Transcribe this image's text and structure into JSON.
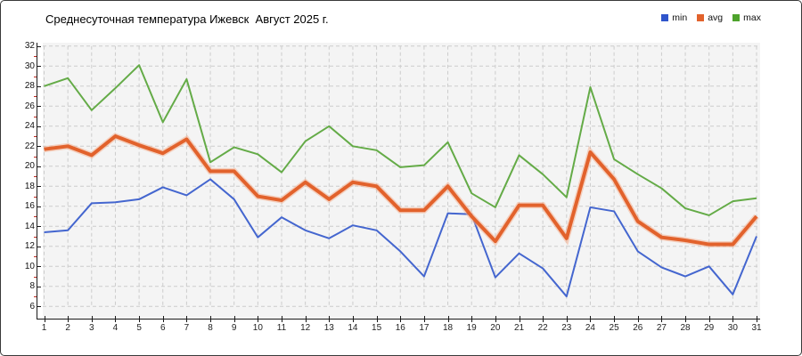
{
  "title": "Среднесуточная температура Ижевск  Август 2025 г.",
  "legend": [
    {
      "label": "min",
      "color": "#2f55cb"
    },
    {
      "label": "avg",
      "color": "#e2622c"
    },
    {
      "label": "max",
      "color": "#4ea32c"
    }
  ],
  "colors": {
    "plot_bg": "#f4f4f4",
    "grid": "#cccccc",
    "axis": "#1a1a1a",
    "minor_tick": "#c22a22"
  },
  "chart_data": {
    "type": "line",
    "x": [
      1,
      2,
      3,
      4,
      5,
      6,
      7,
      8,
      9,
      10,
      11,
      12,
      13,
      14,
      15,
      16,
      17,
      18,
      19,
      20,
      21,
      22,
      23,
      24,
      25,
      26,
      27,
      28,
      29,
      30,
      31
    ],
    "series": [
      {
        "name": "min",
        "color": "#4466cf",
        "width": 2,
        "values": [
          13.4,
          13.6,
          16.3,
          16.4,
          16.7,
          17.9,
          17.1,
          18.7,
          16.7,
          12.9,
          14.9,
          13.6,
          12.8,
          14.1,
          13.6,
          11.5,
          9.0,
          15.3,
          15.2,
          8.9,
          11.3,
          9.8,
          7.0,
          15.9,
          15.5,
          11.5,
          9.9,
          9.0,
          10.0,
          7.2,
          13.0
        ]
      },
      {
        "name": "avg",
        "color": "#e2622c",
        "width": 4,
        "values": [
          21.7,
          22.0,
          21.1,
          23.0,
          22.1,
          21.3,
          22.7,
          19.5,
          19.5,
          17.0,
          16.6,
          18.4,
          16.7,
          18.4,
          18.0,
          15.6,
          15.6,
          18.0,
          15.0,
          12.5,
          16.1,
          16.1,
          12.8,
          21.4,
          18.7,
          14.5,
          12.9,
          12.6,
          12.2,
          12.2,
          15.0
        ]
      },
      {
        "name": "max",
        "color": "#64ab47",
        "width": 2,
        "values": [
          28.0,
          28.8,
          25.6,
          27.8,
          30.1,
          24.4,
          28.7,
          20.4,
          21.9,
          21.2,
          19.4,
          22.5,
          24.0,
          22.0,
          21.6,
          19.9,
          20.1,
          22.4,
          17.3,
          15.9,
          21.1,
          19.2,
          16.9,
          27.9,
          20.7,
          19.2,
          17.8,
          15.8,
          15.1,
          16.5,
          16.8
        ]
      }
    ],
    "title": "Среднесуточная температура Ижевск  Август 2025 г.",
    "xlabel": "",
    "ylabel": "",
    "ylim": [
      6,
      32
    ],
    "yticks": [
      6,
      8,
      10,
      12,
      14,
      16,
      18,
      20,
      22,
      24,
      26,
      28,
      30,
      32
    ],
    "yticks_minor": [
      7,
      9,
      11,
      13,
      15,
      17,
      19,
      21,
      23,
      25,
      27,
      29,
      31
    ],
    "xticks": [
      1,
      2,
      3,
      4,
      5,
      6,
      7,
      8,
      9,
      10,
      11,
      12,
      13,
      14,
      15,
      16,
      17,
      18,
      19,
      20,
      21,
      22,
      23,
      24,
      25,
      26,
      27,
      28,
      29,
      30,
      31
    ],
    "grid": true,
    "legend_position": "top-right"
  }
}
